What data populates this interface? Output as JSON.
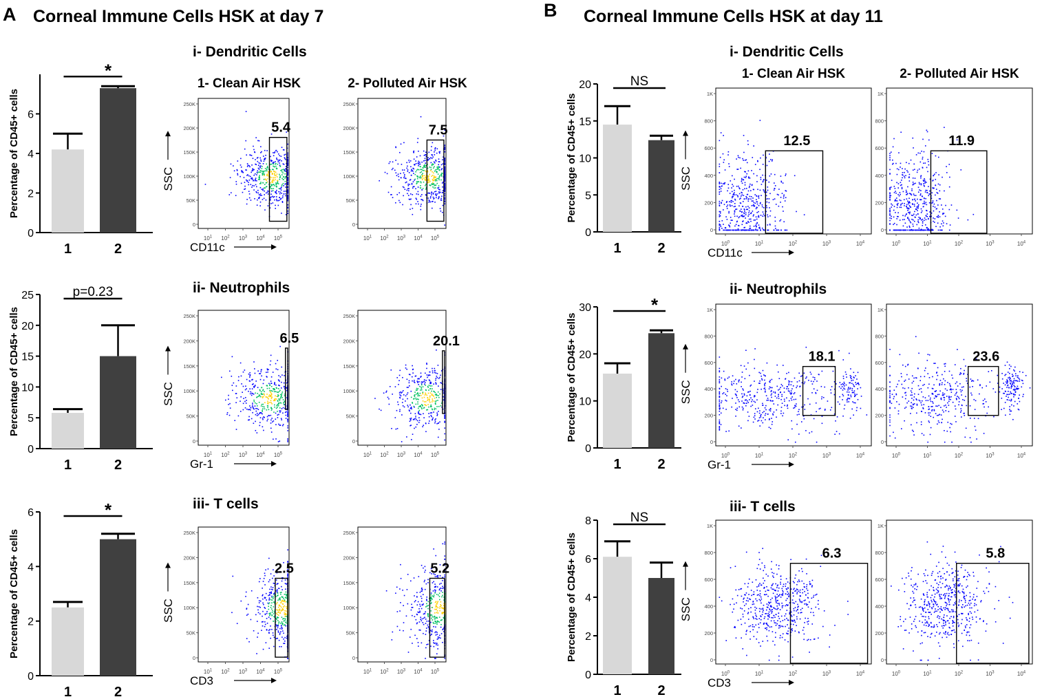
{
  "figure": {
    "panel_a": {
      "letter": "A",
      "title": "Corneal Immune Cells HSK at day 7"
    },
    "panel_b": {
      "letter": "B",
      "title": "Corneal Immune Cells HSK at day 11"
    }
  },
  "colors": {
    "clean_bar": "#d8d8d8",
    "polluted_bar": "#404040",
    "gate": "#000000",
    "density_low": "#0000ff",
    "density_mid": "#00c060",
    "density_high": "#ffd000"
  },
  "chart_data": [
    {
      "type": "bar",
      "panel": "A",
      "row": "i",
      "title": "i- Dendritic Cells",
      "categories": [
        "1",
        "2"
      ],
      "values": [
        4.2,
        7.3
      ],
      "errors": [
        0.8,
        0.1
      ],
      "ylabel": "Percentage of CD45+ cells",
      "ylim": [
        0,
        8
      ],
      "yticks": [
        0,
        2,
        4,
        6
      ],
      "significance": "*"
    },
    {
      "type": "bar",
      "panel": "A",
      "row": "ii",
      "title": "ii- Neutrophils",
      "categories": [
        "1",
        "2"
      ],
      "values": [
        5.8,
        15.0
      ],
      "errors": [
        0.6,
        5.0
      ],
      "ylabel": "Percentage of CD45+ cells",
      "ylim": [
        0,
        25
      ],
      "yticks": [
        0,
        5,
        10,
        15,
        20,
        25
      ],
      "significance": "p=0.23"
    },
    {
      "type": "bar",
      "panel": "A",
      "row": "iii",
      "title": "iii- T cells",
      "categories": [
        "1",
        "2"
      ],
      "values": [
        2.5,
        5.0
      ],
      "errors": [
        0.2,
        0.2
      ],
      "ylabel": "Percentage of CD45+ cells",
      "ylim": [
        0,
        6
      ],
      "yticks": [
        0,
        2,
        4,
        6
      ],
      "significance": "*"
    },
    {
      "type": "bar",
      "panel": "B",
      "row": "i",
      "title": "i- Dendritic Cells",
      "categories": [
        "1",
        "2"
      ],
      "values": [
        14.5,
        12.4
      ],
      "errors": [
        2.5,
        0.6
      ],
      "ylabel": "Percentage of CD45+ cells",
      "ylim": [
        0,
        20
      ],
      "yticks": [
        0,
        5,
        10,
        15,
        20
      ],
      "significance": "NS"
    },
    {
      "type": "bar",
      "panel": "B",
      "row": "ii",
      "title": "ii- Neutrophils",
      "categories": [
        "1",
        "2"
      ],
      "values": [
        15.8,
        24.4
      ],
      "errors": [
        2.2,
        0.6
      ],
      "ylabel": "Percentage of CD45+ cells",
      "ylim": [
        0,
        30
      ],
      "yticks": [
        0,
        10,
        20,
        30
      ],
      "significance": "*"
    },
    {
      "type": "bar",
      "panel": "B",
      "row": "iii",
      "title": "iii- T cells",
      "categories": [
        "1",
        "2"
      ],
      "values": [
        6.1,
        5.0
      ],
      "errors": [
        0.8,
        0.8
      ],
      "ylabel": "Percentage of CD45+ cells",
      "ylim": [
        0,
        8
      ],
      "yticks": [
        0,
        2,
        4,
        6,
        8
      ],
      "significance": "NS"
    },
    {
      "type": "scatter",
      "subtype": "flow-cytometry",
      "panel": "A",
      "row": "i",
      "plots": [
        {
          "title": "1- Clean Air HSK",
          "gate_percent": "5.4"
        },
        {
          "title": "2- Polluted Air HSK",
          "gate_percent": "7.5"
        }
      ],
      "ylabel": "SSC",
      "xlabel": "CD11c",
      "yticks": [
        "250K",
        "200K",
        "150K",
        "100K",
        "50K",
        "0"
      ],
      "xticks": [
        "10^1",
        "10^2",
        "10^3",
        "10^4",
        "10^5"
      ]
    },
    {
      "type": "scatter",
      "subtype": "flow-cytometry",
      "panel": "A",
      "row": "ii",
      "plots": [
        {
          "title": "",
          "gate_percent": "6.5"
        },
        {
          "title": "",
          "gate_percent": "20.1"
        }
      ],
      "ylabel": "SSC",
      "xlabel": "Gr-1",
      "yticks": [
        "250K",
        "200K",
        "150K",
        "100K",
        "50K",
        "0"
      ],
      "xticks": [
        "10^1",
        "10^2",
        "10^3",
        "10^4",
        "10^5"
      ]
    },
    {
      "type": "scatter",
      "subtype": "flow-cytometry",
      "panel": "A",
      "row": "iii",
      "plots": [
        {
          "title": "",
          "gate_percent": "2.5"
        },
        {
          "title": "",
          "gate_percent": "5.2"
        }
      ],
      "ylabel": "SSC",
      "xlabel": "CD3",
      "yticks": [
        "250K",
        "200K",
        "150K",
        "100K",
        "50K",
        "0"
      ],
      "xticks": [
        "10^1",
        "10^2",
        "10^3",
        "10^4",
        "10^5"
      ]
    },
    {
      "type": "scatter",
      "subtype": "flow-cytometry",
      "panel": "B",
      "row": "i",
      "plots": [
        {
          "title": "1- Clean Air HSK",
          "gate_percent": "12.5"
        },
        {
          "title": "2- Polluted Air HSK",
          "gate_percent": "11.9"
        }
      ],
      "ylabel": "SSC",
      "xlabel": "CD11c",
      "yticks": [
        "1K",
        "800",
        "600",
        "400",
        "200",
        "0"
      ],
      "xticks": [
        "10^0",
        "10^1",
        "10^2",
        "10^3",
        "10^4"
      ]
    },
    {
      "type": "scatter",
      "subtype": "flow-cytometry",
      "panel": "B",
      "row": "ii",
      "plots": [
        {
          "title": "",
          "gate_percent": "18.1"
        },
        {
          "title": "",
          "gate_percent": "23.6"
        }
      ],
      "ylabel": "SSC",
      "xlabel": "Gr-1",
      "yticks": [
        "1K",
        "800",
        "600",
        "400",
        "200",
        "0"
      ],
      "xticks": [
        "10^0",
        "10^1",
        "10^2",
        "10^3",
        "10^4"
      ]
    },
    {
      "type": "scatter",
      "subtype": "flow-cytometry",
      "panel": "B",
      "row": "iii",
      "plots": [
        {
          "title": "",
          "gate_percent": "6.3"
        },
        {
          "title": "",
          "gate_percent": "5.8"
        }
      ],
      "ylabel": "SSC",
      "xlabel": "CD3",
      "yticks": [
        "1K",
        "800",
        "600",
        "400",
        "200",
        "0"
      ],
      "xticks": [
        "10^0",
        "10^1",
        "10^2",
        "10^3",
        "10^4"
      ]
    }
  ]
}
